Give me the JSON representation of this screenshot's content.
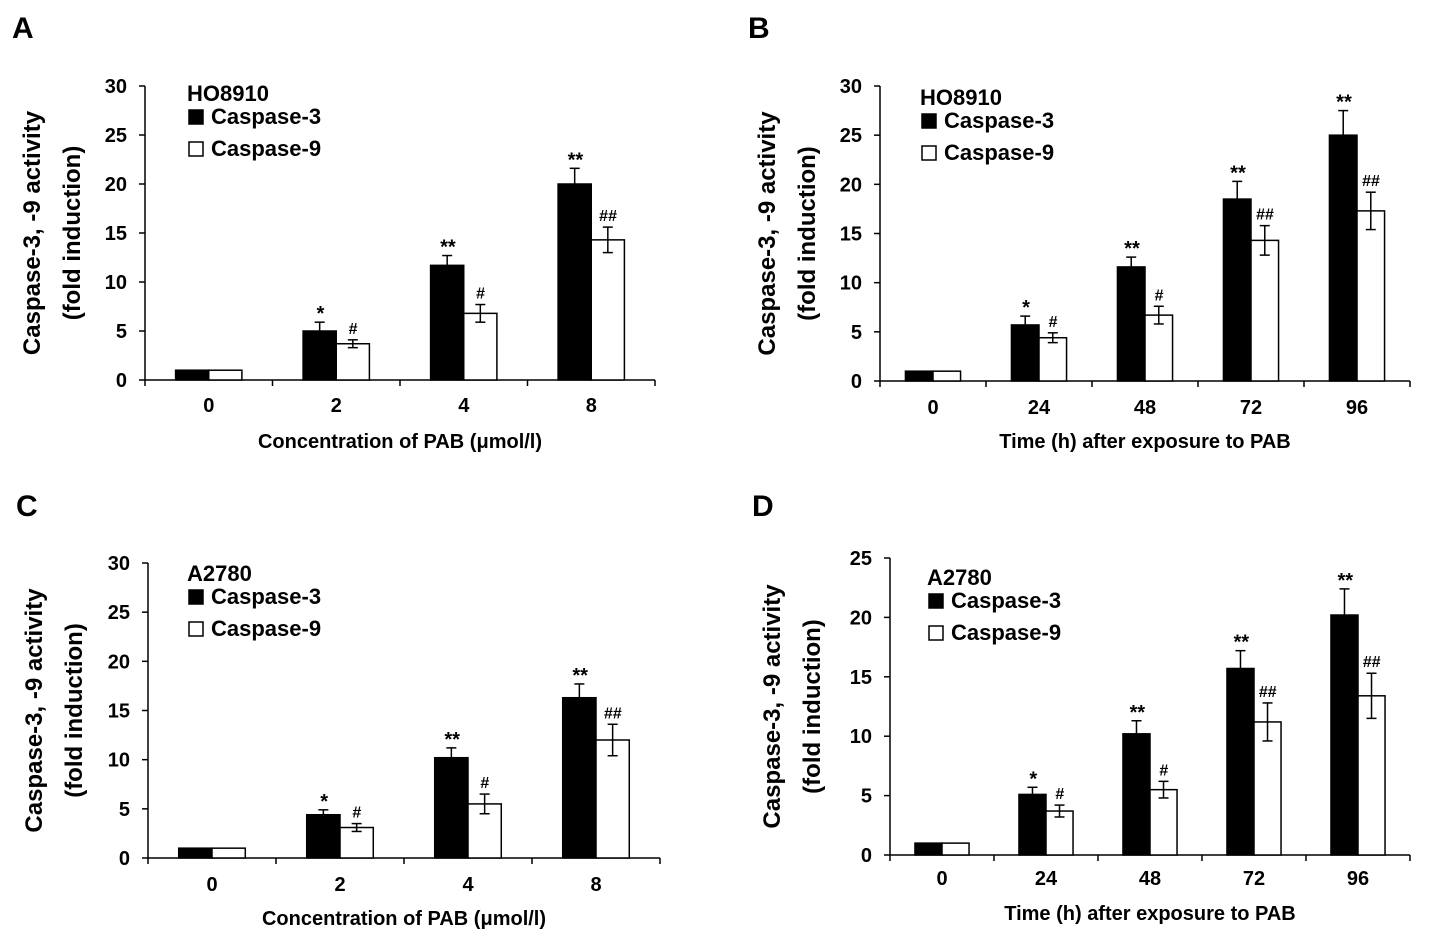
{
  "chart_data": [
    {
      "panel": "A",
      "type": "bar",
      "cell_line": "HO8910",
      "categories": [
        "0",
        "2",
        "4",
        "8"
      ],
      "xlabel": "Concentration of PAB (μmol/l)",
      "ylabel": [
        "Caspase-3, -9 activity",
        "(fold induction)"
      ],
      "ylim": [
        0,
        30
      ],
      "yticks": [
        0,
        5,
        10,
        15,
        20,
        25,
        30
      ],
      "legend_position": "top-left",
      "series": [
        {
          "name": "Caspase-3",
          "color": "#000000",
          "values": [
            1,
            5.0,
            11.7,
            20.0
          ],
          "errors": [
            0,
            0.9,
            1.0,
            1.6
          ],
          "annotations": [
            "",
            "*",
            "**",
            "**"
          ]
        },
        {
          "name": "Caspase-9",
          "color": "#ffffff",
          "values": [
            1,
            3.7,
            6.8,
            14.3
          ],
          "errors": [
            0,
            0.4,
            0.9,
            1.3
          ],
          "annotations": [
            "",
            "#",
            "#",
            "##"
          ]
        }
      ]
    },
    {
      "panel": "B",
      "type": "bar",
      "cell_line": "HO8910",
      "categories": [
        "0",
        "24",
        "48",
        "72",
        "96"
      ],
      "xlabel": "Time (h) after exposure to PAB",
      "ylabel": [
        "Caspase-3, -9 activity",
        "(fold induction)"
      ],
      "ylim": [
        0,
        30
      ],
      "yticks": [
        0,
        5,
        10,
        15,
        20,
        25,
        30
      ],
      "legend_position": "top-left",
      "series": [
        {
          "name": "Caspase-3",
          "color": "#000000",
          "values": [
            1,
            5.7,
            11.6,
            18.5,
            25.0
          ],
          "errors": [
            0,
            0.9,
            1.0,
            1.8,
            2.5
          ],
          "annotations": [
            "",
            "*",
            "**",
            "**",
            "**"
          ]
        },
        {
          "name": "Caspase-9",
          "color": "#ffffff",
          "values": [
            1,
            4.4,
            6.7,
            14.3,
            17.3
          ],
          "errors": [
            0,
            0.5,
            0.9,
            1.5,
            1.9
          ],
          "annotations": [
            "",
            "#",
            "#",
            "##",
            "##"
          ]
        }
      ]
    },
    {
      "panel": "C",
      "type": "bar",
      "cell_line": "A2780",
      "categories": [
        "0",
        "2",
        "4",
        "8"
      ],
      "xlabel": "Concentration of PAB (μmol/l)",
      "ylabel": [
        "Caspase-3, -9 activity",
        "(fold induction)"
      ],
      "ylim": [
        0,
        30
      ],
      "yticks": [
        0,
        5,
        10,
        15,
        20,
        25,
        30
      ],
      "legend_position": "top-left",
      "series": [
        {
          "name": "Caspase-3",
          "color": "#000000",
          "values": [
            1,
            4.4,
            10.2,
            16.3
          ],
          "errors": [
            0,
            0.5,
            1.0,
            1.4
          ],
          "annotations": [
            "",
            "*",
            "**",
            "**"
          ]
        },
        {
          "name": "Caspase-9",
          "color": "#ffffff",
          "values": [
            1,
            3.1,
            5.5,
            12.0
          ],
          "errors": [
            0,
            0.4,
            1.0,
            1.6
          ],
          "annotations": [
            "",
            "#",
            "#",
            "##"
          ]
        }
      ]
    },
    {
      "panel": "D",
      "type": "bar",
      "cell_line": "A2780",
      "categories": [
        "0",
        "24",
        "48",
        "72",
        "96"
      ],
      "xlabel": "Time (h) after exposure to PAB",
      "ylabel": [
        "Caspase-3, -9 activity",
        "(fold induction)"
      ],
      "ylim": [
        0,
        25
      ],
      "yticks": [
        0,
        5,
        10,
        15,
        20,
        25
      ],
      "legend_position": "top-left",
      "series": [
        {
          "name": "Caspase-3",
          "color": "#000000",
          "values": [
            1,
            5.1,
            10.2,
            15.7,
            20.2
          ],
          "errors": [
            0,
            0.6,
            1.1,
            1.5,
            2.2
          ],
          "annotations": [
            "",
            "*",
            "**",
            "**",
            "**"
          ]
        },
        {
          "name": "Caspase-9",
          "color": "#ffffff",
          "values": [
            1,
            3.7,
            5.5,
            11.2,
            13.4
          ],
          "errors": [
            0,
            0.5,
            0.7,
            1.6,
            1.9
          ],
          "annotations": [
            "",
            "#",
            "#",
            "##",
            "##"
          ]
        }
      ]
    }
  ]
}
